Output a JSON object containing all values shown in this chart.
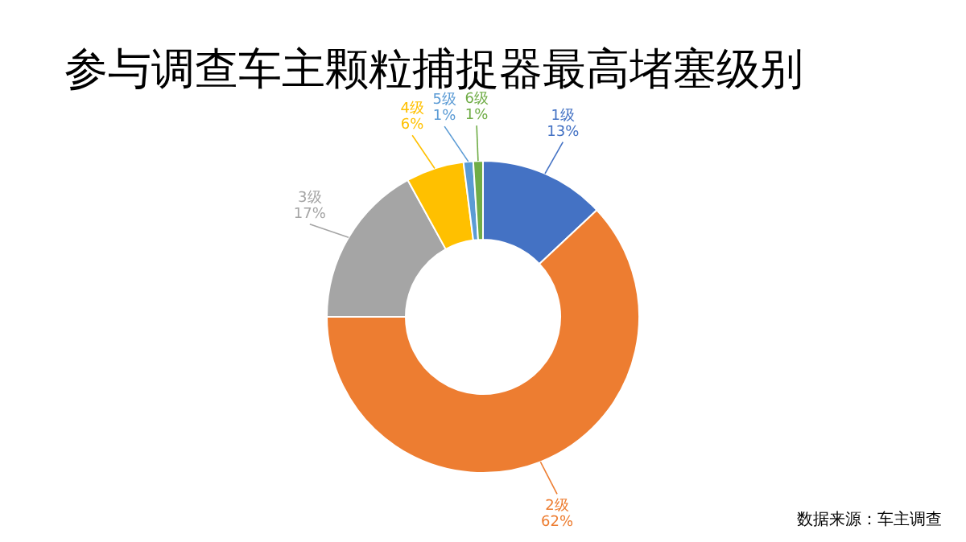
{
  "chart_data": {
    "type": "donut",
    "title": "参与调查车主颗粒捕捉器最高堵塞级别",
    "categories": [
      "1级",
      "2级",
      "3级",
      "4级",
      "5级",
      "6级"
    ],
    "values": [
      13,
      62,
      17,
      6,
      1,
      1
    ],
    "colors": [
      "#4472c4",
      "#ed7d31",
      "#a5a5a5",
      "#ffc000",
      "#5b9bd5",
      "#70ad47"
    ],
    "value_labels": [
      "13%",
      "62%",
      "17%",
      "6%",
      "1%",
      "1%"
    ],
    "annotations": [
      "数据来源：车主调查"
    ]
  }
}
